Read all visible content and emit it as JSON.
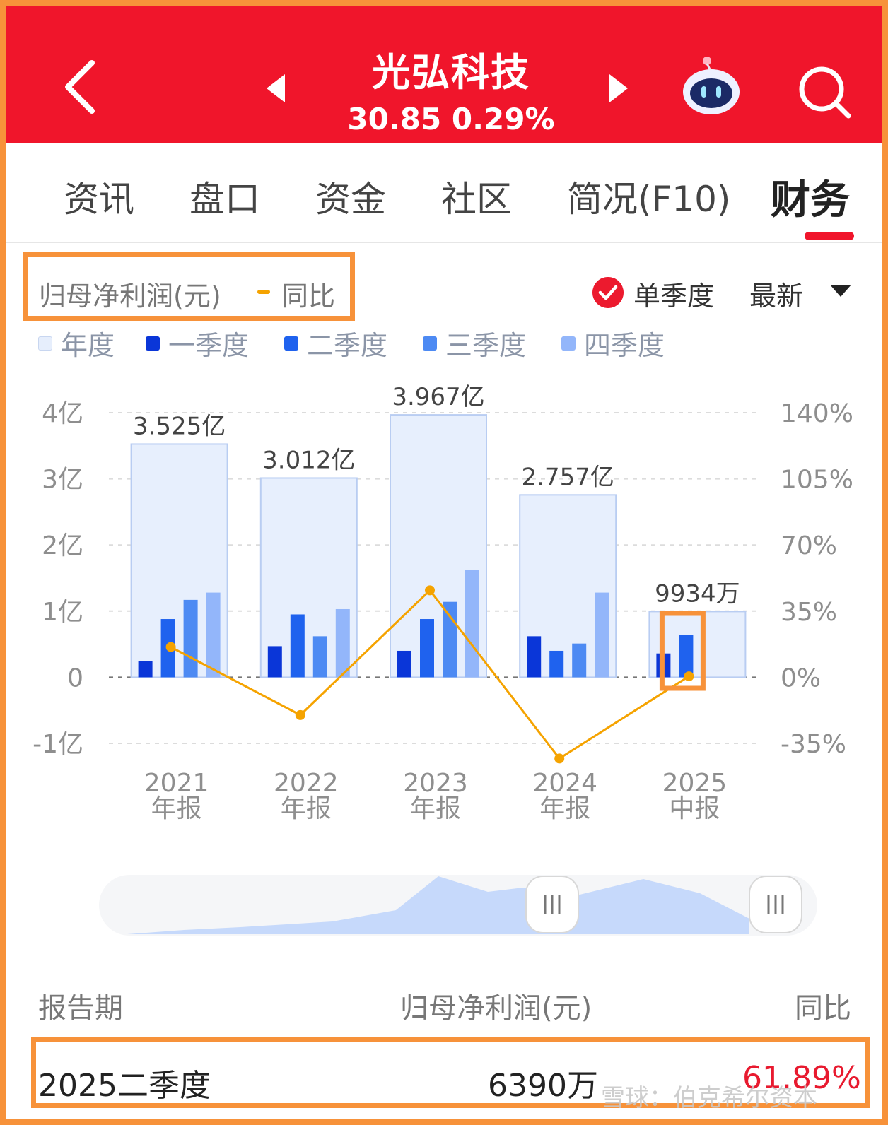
{
  "header": {
    "title": "光弘科技",
    "price_line": "30.85 0.29%",
    "bg_color": "#f0152b"
  },
  "tabs": [
    {
      "label": "资讯"
    },
    {
      "label": "盘口"
    },
    {
      "label": "资金"
    },
    {
      "label": "社区"
    },
    {
      "label": "简况(F10)"
    },
    {
      "label": "财务"
    }
  ],
  "metric": {
    "label": "归母净利润(元)",
    "yoy_label": "同比",
    "single_quarter_label": "单季度",
    "period_select": "最新"
  },
  "legend": [
    {
      "label": "年度",
      "color": "#e6eefc"
    },
    {
      "label": "一季度",
      "color": "#0a36d8"
    },
    {
      "label": "二季度",
      "color": "#1f62ee"
    },
    {
      "label": "三季度",
      "color": "#4d8af3"
    },
    {
      "label": "四季度",
      "color": "#93b6fa"
    }
  ],
  "chart_data": {
    "type": "bar",
    "categories": [
      [
        "2021",
        "年报"
      ],
      [
        "2022",
        "年报"
      ],
      [
        "2023",
        "年报"
      ],
      [
        "2024",
        "年报"
      ],
      [
        "2025",
        "中报"
      ]
    ],
    "annual": {
      "values": [
        3.525,
        3.012,
        3.967,
        2.757,
        0.9934
      ],
      "labels": [
        "3.525亿",
        "3.012亿",
        "3.967亿",
        "2.757亿",
        "9934万"
      ]
    },
    "series": [
      {
        "name": "一季度",
        "values": [
          0.25,
          0.47,
          0.4,
          0.62,
          0.36
        ]
      },
      {
        "name": "二季度",
        "values": [
          0.88,
          0.95,
          0.88,
          0.4,
          0.639
        ]
      },
      {
        "name": "三季度",
        "values": [
          1.17,
          0.62,
          1.14,
          0.51,
          null
        ]
      },
      {
        "name": "四季度",
        "values": [
          1.28,
          1.03,
          1.62,
          1.28,
          null
        ]
      }
    ],
    "yoy": {
      "name": "同比",
      "values": [
        16,
        -20,
        46,
        -43,
        0.5
      ]
    },
    "y_left": {
      "min": -1,
      "max": 4,
      "ticks": [
        "-1亿",
        "0",
        "1亿",
        "2亿",
        "3亿",
        "4亿"
      ]
    },
    "y_right": {
      "min": -35,
      "max": 140,
      "ticks": [
        "-35%",
        "0%",
        "35%",
        "70%",
        "105%",
        "140%"
      ]
    },
    "grid": true,
    "line_color": "#f5a300"
  },
  "table": {
    "headers": [
      "报告期",
      "归母净利润(元)",
      "同比"
    ],
    "row": {
      "period": "2025二季度",
      "value": "6390万",
      "yoy": "61.89%"
    }
  },
  "watermark": "雪球：伯克希尔资本"
}
